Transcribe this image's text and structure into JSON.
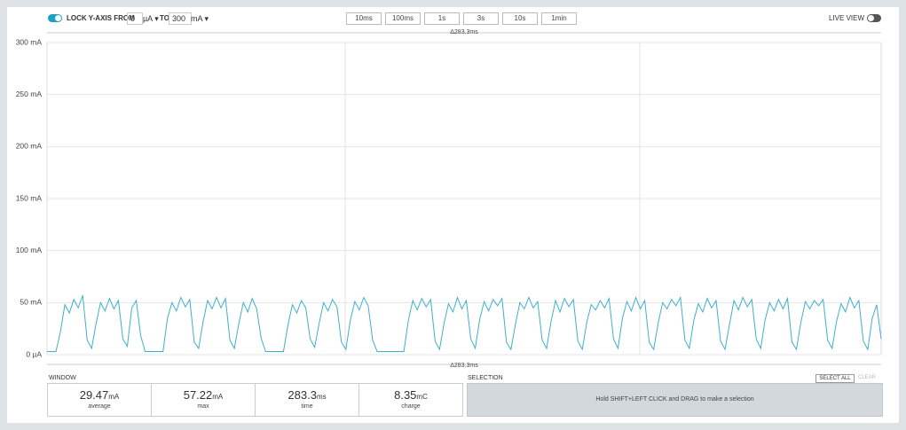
{
  "toolbar": {
    "lock_y_axis": true,
    "lock_label": "LOCK Y-AXIS FROM",
    "from_unit": "µA",
    "to_label": "TO",
    "to_unit": "mA",
    "time_buttons": [
      "10ms",
      "100ms",
      "1s",
      "3s",
      "10s",
      "1min"
    ],
    "live_view_label": "LIVE VIEW",
    "live_view": false
  },
  "chart_data": {
    "type": "line",
    "window_label": "Δ283.3ms",
    "color": "#3fb0cc",
    "grid": true,
    "ylim": [
      0,
      300
    ],
    "yticks": [
      {
        "value": 0,
        "label": "0 µA"
      },
      {
        "value": 50,
        "label": "50 mA"
      },
      {
        "value": 100,
        "label": "100 mA"
      },
      {
        "value": 150,
        "label": "150 mA"
      },
      {
        "value": 200,
        "label": "200 mA"
      },
      {
        "value": 250,
        "label": "250 mA"
      },
      {
        "value": 300,
        "label": "300 mA"
      }
    ],
    "values": [
      3,
      3,
      3,
      22,
      48,
      40,
      53,
      45,
      57,
      14,
      6,
      30,
      50,
      42,
      54,
      44,
      52,
      15,
      8,
      45,
      52,
      18,
      3,
      3,
      3,
      3,
      3,
      35,
      50,
      42,
      55,
      46,
      53,
      12,
      6,
      32,
      52,
      44,
      55,
      45,
      54,
      14,
      6,
      30,
      50,
      41,
      54,
      44,
      16,
      3,
      3,
      3,
      3,
      3,
      28,
      48,
      40,
      52,
      45,
      15,
      7,
      30,
      50,
      42,
      53,
      46,
      12,
      5,
      33,
      51,
      43,
      55,
      47,
      14,
      3,
      3,
      3,
      3,
      3,
      3,
      3,
      33,
      52,
      43,
      54,
      46,
      53,
      13,
      5,
      30,
      49,
      41,
      55,
      44,
      52,
      15,
      6,
      34,
      51,
      42,
      53,
      47,
      54,
      12,
      5,
      29,
      50,
      44,
      55,
      45,
      51,
      14,
      6,
      32,
      52,
      41,
      54,
      46,
      53,
      13,
      5,
      31,
      48,
      43,
      52,
      45,
      54,
      15,
      6,
      35,
      51,
      42,
      55,
      44,
      52,
      12,
      5,
      30,
      50,
      44,
      53,
      47,
      55,
      14,
      6,
      33,
      49,
      41,
      54,
      45,
      52,
      13,
      5,
      29,
      52,
      43,
      55,
      46,
      53,
      15,
      6,
      34,
      50,
      42,
      53,
      44,
      54,
      12,
      5,
      31,
      51,
      44,
      52,
      47,
      53,
      14,
      6,
      32,
      49,
      41,
      55,
      45,
      52,
      13,
      5,
      35,
      48,
      15
    ]
  },
  "window": {
    "title": "WINDOW",
    "stats": [
      {
        "value": "29.47",
        "unit": "mA",
        "label": "average"
      },
      {
        "value": "57.22",
        "unit": "mA",
        "label": "max"
      },
      {
        "value": "283.3",
        "unit": "ms",
        "label": "time"
      },
      {
        "value": "8.35",
        "unit": "mC",
        "label": "charge"
      }
    ]
  },
  "selection": {
    "title": "SELECTION",
    "select_all": "SELECT ALL",
    "clear": "CLEAR",
    "hint": "Hold SHIFT+LEFT CLICK and DRAG to make a selection"
  }
}
